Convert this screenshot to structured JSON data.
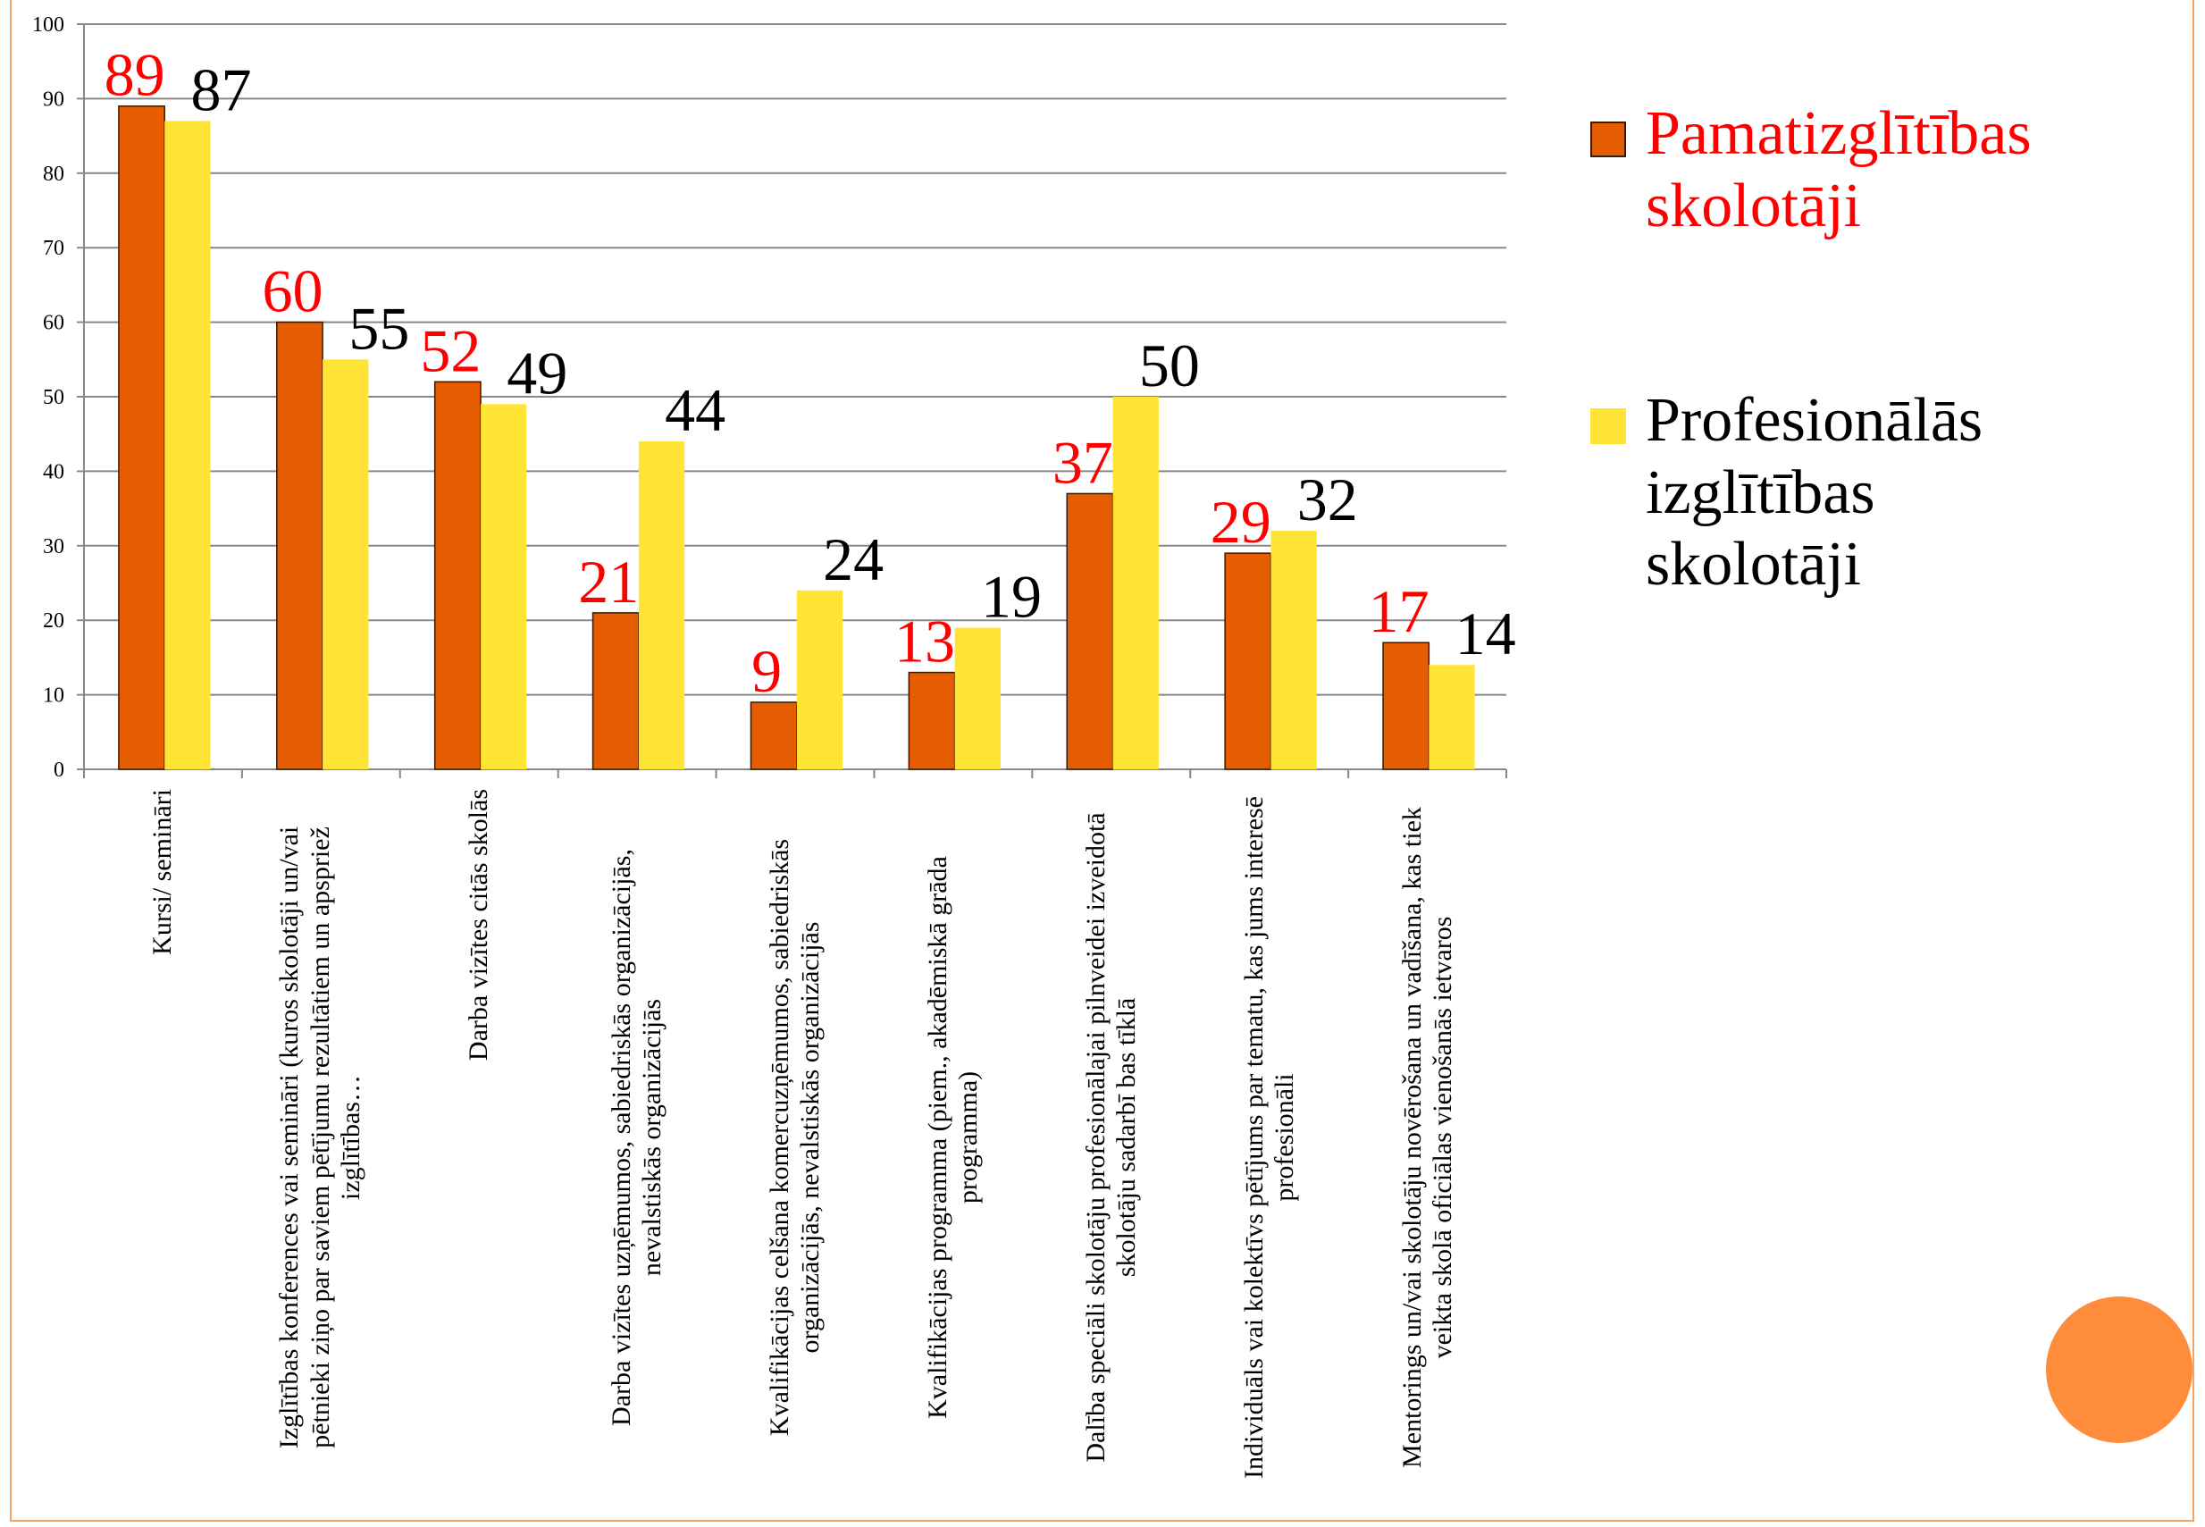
{
  "chart_data": {
    "type": "bar",
    "categories": [
      "Kursi/ semināri",
      "Izglītības konferences vai semināri (kuros skolotāji un/vai pētnieki ziņo par saviem pētījumu rezultātiem un apspriež izglītības…",
      "Darba vizītes citās skolās",
      "Darba vizītes uzņēmumos, sabiedriskās organizācijās, nevalstiskās organizācijās",
      "Kvalifikācijas celšana komercuzņēmumos, sabiedriskās organizācijās, nevalstiskās organizācijās",
      "Kvalifikācijas programma (piem., akadēmiskā grāda programma)",
      "Dalība speciāli skolotāju profesionālajai pilnveidei izveidotā skolotāju sadarbī bas tīklā",
      "Individuāls vai kolektīvs pētījums par tematu, kas jums interesē profesionāli",
      "Mentorings un/vai skolotāju novērošana un vadīšana, kas tiek veikta skolā oficiālas vienošanās ietvaros"
    ],
    "series": [
      {
        "name": "Pamatizglītības skolotāji",
        "color": "#E65C00",
        "label_color": "#FF0000",
        "values": [
          89,
          60,
          52,
          21,
          9,
          13,
          37,
          29,
          17
        ]
      },
      {
        "name": "Profesionālās izglītības skolotāji",
        "color": "#FFE335",
        "label_color": "#000000",
        "values": [
          87,
          55,
          49,
          44,
          24,
          19,
          50,
          32,
          14
        ]
      }
    ],
    "ylim": [
      0,
      100
    ],
    "yticks": [
      0,
      10,
      20,
      30,
      40,
      50,
      60,
      70,
      80,
      90,
      100
    ],
    "grid": true,
    "legend": "right"
  }
}
